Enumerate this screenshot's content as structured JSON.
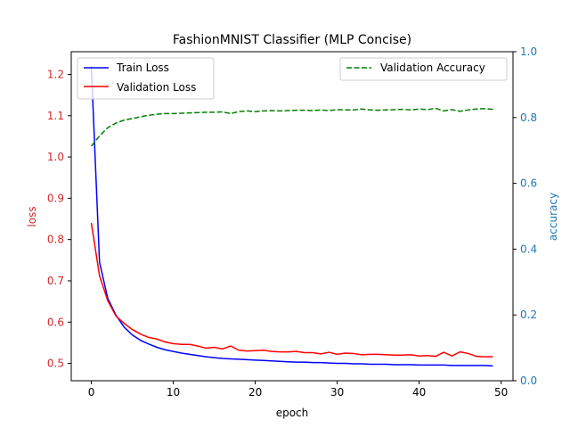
{
  "chart_data": {
    "type": "line",
    "title": "FashionMNIST Classifier (MLP Concise)",
    "xlabel": "epoch",
    "ylabel_left": "loss",
    "ylabel_right": "accuracy",
    "xlim": [
      -2.45,
      51.45
    ],
    "ylim_left": [
      0.458,
      1.255
    ],
    "ylim_right": [
      0.0,
      1.0
    ],
    "xticks": [
      0,
      10,
      20,
      30,
      40,
      50
    ],
    "yticks_left": [
      0.5,
      0.6,
      0.7,
      0.8,
      0.9,
      1.0,
      1.1,
      1.2
    ],
    "yticks_right": [
      0.0,
      0.2,
      0.4,
      0.6,
      0.8,
      1.0
    ],
    "tick_labels_x": [
      "0",
      "10",
      "20",
      "30",
      "40",
      "50"
    ],
    "tick_labels_left": [
      "0.5",
      "0.6",
      "0.7",
      "0.8",
      "0.9",
      "1.0",
      "1.1",
      "1.2"
    ],
    "tick_labels_right": [
      "0.0",
      "0.2",
      "0.4",
      "0.6",
      "0.8",
      "1.0"
    ],
    "grid": false,
    "legend_left": "top-left",
    "legend_right": "top-right",
    "x": [
      0,
      1,
      2,
      3,
      4,
      5,
      6,
      7,
      8,
      9,
      10,
      11,
      12,
      13,
      14,
      15,
      16,
      17,
      18,
      19,
      20,
      21,
      22,
      23,
      24,
      25,
      26,
      27,
      28,
      29,
      30,
      31,
      32,
      33,
      34,
      35,
      36,
      37,
      38,
      39,
      40,
      41,
      42,
      43,
      44,
      45,
      46,
      47,
      48,
      49
    ],
    "series": [
      {
        "name": "Train Loss",
        "axis": "left",
        "color": "#0000ff",
        "dash": "solid",
        "values": [
          1.22,
          0.745,
          0.658,
          0.617,
          0.588,
          0.569,
          0.556,
          0.547,
          0.539,
          0.533,
          0.529,
          0.525,
          0.522,
          0.519,
          0.516,
          0.514,
          0.512,
          0.511,
          0.51,
          0.509,
          0.508,
          0.507,
          0.506,
          0.505,
          0.504,
          0.503,
          0.503,
          0.502,
          0.502,
          0.501,
          0.5,
          0.5,
          0.499,
          0.499,
          0.498,
          0.498,
          0.498,
          0.497,
          0.497,
          0.497,
          0.496,
          0.496,
          0.496,
          0.496,
          0.495,
          0.495,
          0.495,
          0.495,
          0.495,
          0.494
        ]
      },
      {
        "name": "Validation Loss",
        "axis": "left",
        "color": "#ff0000",
        "dash": "solid",
        "values": [
          0.84,
          0.712,
          0.652,
          0.615,
          0.597,
          0.582,
          0.571,
          0.563,
          0.559,
          0.552,
          0.548,
          0.546,
          0.546,
          0.542,
          0.537,
          0.539,
          0.535,
          0.542,
          0.532,
          0.53,
          0.531,
          0.532,
          0.529,
          0.528,
          0.528,
          0.529,
          0.526,
          0.526,
          0.523,
          0.527,
          0.522,
          0.525,
          0.524,
          0.521,
          0.522,
          0.522,
          0.521,
          0.52,
          0.52,
          0.521,
          0.518,
          0.519,
          0.517,
          0.527,
          0.518,
          0.528,
          0.524,
          0.517,
          0.516,
          0.516
        ]
      },
      {
        "name": "Validation Accuracy",
        "axis": "right",
        "color": "#008000",
        "dash": "dashed",
        "values": [
          0.713,
          0.744,
          0.769,
          0.783,
          0.792,
          0.797,
          0.802,
          0.807,
          0.81,
          0.812,
          0.812,
          0.813,
          0.814,
          0.815,
          0.816,
          0.816,
          0.817,
          0.812,
          0.818,
          0.82,
          0.818,
          0.82,
          0.821,
          0.82,
          0.821,
          0.822,
          0.822,
          0.821,
          0.823,
          0.821,
          0.824,
          0.823,
          0.823,
          0.826,
          0.823,
          0.822,
          0.823,
          0.824,
          0.825,
          0.823,
          0.826,
          0.824,
          0.828,
          0.82,
          0.824,
          0.819,
          0.823,
          0.826,
          0.827,
          0.825
        ]
      }
    ]
  }
}
